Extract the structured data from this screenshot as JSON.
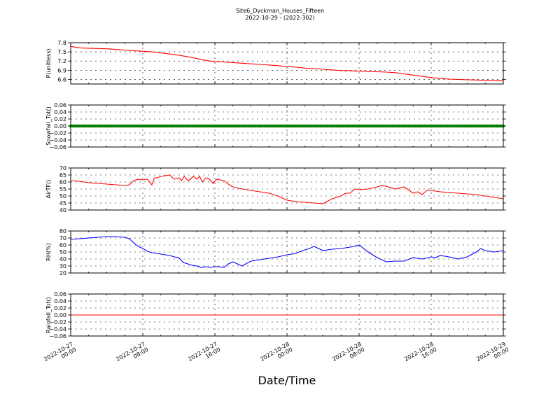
{
  "figure": {
    "title": "Site6_Dyckman_Houses_Fifteen",
    "subtitle": "2022-10-29 - (2022-302)",
    "xlabel": "Date/Time"
  },
  "colors": {
    "red": "#ff0000",
    "green": "#007f00",
    "blue": "#0000ff",
    "axis": "#000000"
  },
  "chart_data": [
    {
      "type": "line",
      "ylabel": "P(unitless)",
      "ylim": [
        6.45,
        7.8
      ],
      "yticks": [
        6.6,
        6.9,
        7.2,
        7.5,
        7.8
      ],
      "yticklabels": [
        "6.6",
        "6.9",
        "7.2",
        "7.5",
        "7.8"
      ],
      "grid": true,
      "color": "#ff0000",
      "series": [
        {
          "x": [
            0,
            1,
            2,
            3,
            4,
            5,
            6,
            7,
            8,
            9,
            10,
            11,
            12,
            13,
            14,
            15,
            16,
            17,
            18,
            19,
            20,
            21,
            22,
            23,
            24,
            25,
            26,
            27,
            28,
            29,
            30,
            31,
            32,
            33,
            34,
            35,
            36,
            37,
            38,
            39,
            40,
            41,
            42,
            43,
            44,
            45,
            46,
            47,
            48
          ],
          "values": [
            7.68,
            7.63,
            7.62,
            7.61,
            7.6,
            7.58,
            7.56,
            7.54,
            7.52,
            7.5,
            7.47,
            7.43,
            7.39,
            7.34,
            7.28,
            7.22,
            7.18,
            7.17,
            7.15,
            7.13,
            7.11,
            7.09,
            7.07,
            7.05,
            7.02,
            7.0,
            6.97,
            6.95,
            6.93,
            6.91,
            6.89,
            6.88,
            6.87,
            6.86,
            6.85,
            6.84,
            6.82,
            6.78,
            6.74,
            6.7,
            6.66,
            6.63,
            6.61,
            6.6,
            6.59,
            6.58,
            6.57,
            6.56,
            6.55
          ]
        }
      ]
    },
    {
      "type": "scatter",
      "ylabel": "Snowfall_Tot()",
      "ylim": [
        -0.06,
        0.06
      ],
      "yticks": [
        -0.06,
        -0.04,
        -0.02,
        0.0,
        0.02,
        0.04,
        0.06
      ],
      "yticklabels": [
        "−0.06",
        "−0.04",
        "−0.02",
        "0.00",
        "0.02",
        "0.04",
        "0.06"
      ],
      "grid": true,
      "color": "#007f00",
      "series": [
        {
          "x_start": 0,
          "x_end": 48,
          "step_hours": 0.25,
          "value": 0.0
        }
      ]
    },
    {
      "type": "line",
      "ylabel": "AirTF()",
      "ylim": [
        40,
        70
      ],
      "yticks": [
        40,
        45,
        50,
        55,
        60,
        65,
        70
      ],
      "yticklabels": [
        "40",
        "45",
        "50",
        "55",
        "60",
        "65",
        "70"
      ],
      "grid": true,
      "color": "#ff0000",
      "series": [
        {
          "x": [
            0,
            1,
            2,
            3,
            4,
            5,
            6,
            6.5,
            7,
            7.5,
            8,
            8.5,
            9,
            9.3,
            9.6,
            10,
            11,
            11.5,
            12,
            12.3,
            12.6,
            13,
            13.3,
            13.6,
            14,
            14.3,
            14.6,
            15,
            15.4,
            15.8,
            16.2,
            16.6,
            17,
            17.3,
            17.6,
            18,
            19,
            20,
            21,
            22,
            23,
            24,
            25,
            26,
            27,
            28,
            29,
            30,
            30.5,
            31,
            31.5,
            32,
            33,
            34,
            34.5,
            35,
            35.5,
            36,
            37,
            38,
            38.5,
            39,
            39.5,
            40,
            40.5,
            41,
            42,
            43,
            44,
            45,
            46,
            47,
            48
          ],
          "values": [
            61,
            60.5,
            59.5,
            59,
            58.5,
            58,
            57.5,
            58,
            61,
            62,
            61.5,
            62,
            58,
            63,
            63,
            64,
            65,
            62,
            63,
            61,
            64,
            61,
            62,
            64,
            62,
            64,
            60,
            63,
            62,
            59,
            62,
            61.5,
            61,
            59.5,
            58,
            56.5,
            55,
            54,
            53,
            52,
            50,
            47,
            46,
            45.5,
            45,
            44.5,
            48,
            50,
            52,
            52,
            55,
            54.5,
            55,
            56.5,
            57.5,
            57,
            56,
            55,
            56.5,
            52,
            53,
            51,
            54,
            54,
            53.5,
            53,
            52.5,
            52,
            51.5,
            51,
            50,
            49,
            48
          ]
        }
      ]
    },
    {
      "type": "line",
      "ylabel": "RH(%)",
      "ylim": [
        20,
        80
      ],
      "yticks": [
        20,
        30,
        40,
        50,
        60,
        70,
        80
      ],
      "yticklabels": [
        "20",
        "30",
        "40",
        "50",
        "60",
        "70",
        "80"
      ],
      "grid": true,
      "color": "#0000ff",
      "series": [
        {
          "x": [
            0,
            1,
            2,
            3,
            4,
            5,
            6,
            6.5,
            7,
            7.5,
            8,
            8.5,
            9,
            9.5,
            10,
            10.5,
            11,
            11.5,
            12,
            12.5,
            13,
            13.5,
            14,
            14.5,
            15,
            15.5,
            16,
            16.5,
            17,
            17.5,
            18,
            19,
            20,
            21,
            22,
            23,
            24,
            25,
            25.5,
            26,
            26.5,
            27,
            28,
            29,
            30,
            31,
            31.5,
            32,
            33,
            34,
            35,
            36,
            37,
            38,
            39,
            40,
            40.5,
            41,
            41.5,
            42,
            43,
            44,
            45,
            45.5,
            46,
            47,
            48
          ],
          "values": [
            68,
            69,
            70,
            71,
            72,
            72,
            71,
            69,
            63,
            58,
            55,
            51,
            49,
            48,
            47,
            46,
            45,
            43,
            42,
            35,
            33,
            31,
            30,
            28,
            29,
            28,
            29,
            29,
            28,
            33,
            36,
            30,
            37,
            39,
            41,
            43,
            46,
            48,
            51,
            53,
            55,
            58,
            52,
            54,
            55,
            57,
            58,
            60,
            50,
            42,
            36,
            37,
            37,
            42,
            40,
            43,
            42,
            45,
            44,
            43,
            40,
            43,
            50,
            55,
            52,
            50,
            52
          ]
        }
      ]
    },
    {
      "type": "line",
      "ylabel": "Rainfall_Tot()",
      "ylim": [
        -0.06,
        0.06
      ],
      "yticks": [
        -0.06,
        -0.04,
        -0.02,
        0.0,
        0.02,
        0.04,
        0.06
      ],
      "yticklabels": [
        "−0.06",
        "−0.04",
        "−0.02",
        "0.00",
        "0.02",
        "0.04",
        "0.06"
      ],
      "grid": true,
      "color": "#ff0000",
      "series": [
        {
          "x": [
            0,
            48
          ],
          "values": [
            0.0,
            0.0
          ]
        }
      ]
    }
  ],
  "x_axis": {
    "xlim": [
      "2022-10-27 00:00",
      "2022-10-29 00:00"
    ],
    "major_ticks": [
      {
        "date": "2022-10-27",
        "time": "00:00"
      },
      {
        "date": "2022-10-27",
        "time": "08:00"
      },
      {
        "date": "2022-10-27",
        "time": "16:00"
      },
      {
        "date": "2022-10-28",
        "time": "00:00"
      },
      {
        "date": "2022-10-28",
        "time": "08:00"
      },
      {
        "date": "2022-10-28",
        "time": "16:00"
      },
      {
        "date": "2022-10-29",
        "time": "00:00"
      }
    ],
    "tick_rotation": 30
  }
}
